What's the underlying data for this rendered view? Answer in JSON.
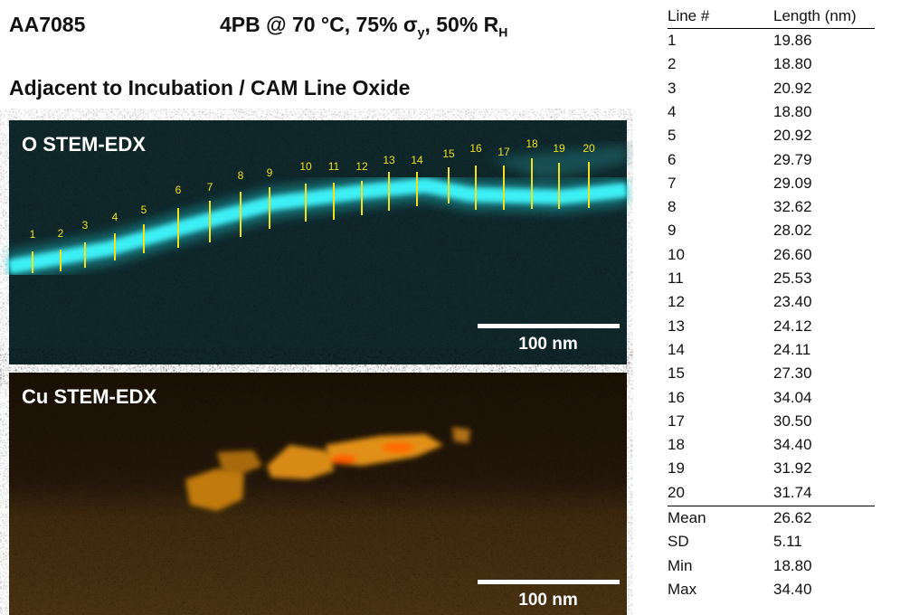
{
  "header": {
    "sample": "AA7085",
    "conditions": [
      "4PB @ 70 °C, 75% σ",
      "y",
      ", 50% R",
      "H"
    ],
    "subtitle": "Adjacent to Incubation / CAM Line Oxide"
  },
  "panels": [
    {
      "label": "O STEM-EDX",
      "scale_bar": "100 nm"
    },
    {
      "label": "Cu STEM-EDX",
      "scale_bar": "100 nm"
    }
  ],
  "line_markers": [
    "1",
    "2",
    "3",
    "4",
    "5",
    "6",
    "7",
    "8",
    "9",
    "10",
    "11",
    "12",
    "13",
    "14",
    "15",
    "16",
    "17",
    "18",
    "19",
    "20"
  ],
  "table": {
    "columns": [
      "Line #",
      "Length (nm)"
    ],
    "rows": [
      [
        "1",
        "19.86"
      ],
      [
        "2",
        "18.80"
      ],
      [
        "3",
        "20.92"
      ],
      [
        "4",
        "18.80"
      ],
      [
        "5",
        "20.92"
      ],
      [
        "6",
        "29.79"
      ],
      [
        "7",
        "29.09"
      ],
      [
        "8",
        "32.62"
      ],
      [
        "9",
        "28.02"
      ],
      [
        "10",
        "26.60"
      ],
      [
        "11",
        "25.53"
      ],
      [
        "12",
        "23.40"
      ],
      [
        "13",
        "24.12"
      ],
      [
        "14",
        "24.11"
      ],
      [
        "15",
        "27.30"
      ],
      [
        "16",
        "34.04"
      ],
      [
        "17",
        "30.50"
      ],
      [
        "18",
        "34.40"
      ],
      [
        "19",
        "31.92"
      ],
      [
        "20",
        "31.74"
      ]
    ],
    "summary": [
      [
        "Mean",
        "26.62"
      ],
      [
        "SD",
        "5.11"
      ],
      [
        "Min",
        "18.80"
      ],
      [
        "Max",
        "34.40"
      ]
    ]
  }
}
